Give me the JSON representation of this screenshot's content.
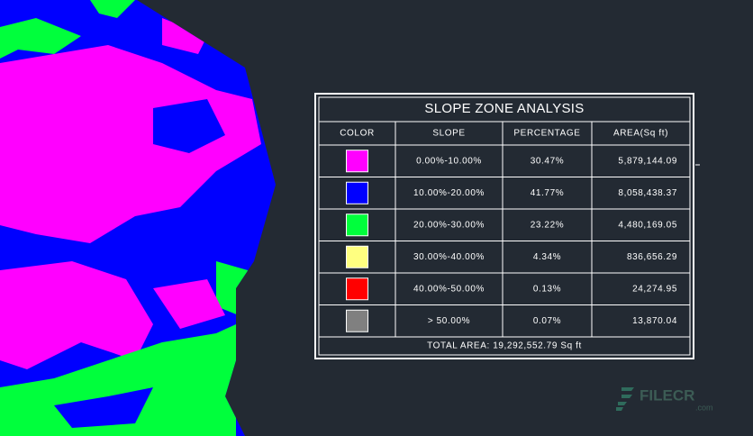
{
  "table": {
    "title": "SLOPE ZONE ANALYSIS",
    "headers": [
      "COLOR",
      "SLOPE",
      "PERCENTAGE",
      "AREA(Sq ft)"
    ],
    "rows": [
      {
        "color": "#ff00ff",
        "slope": "0.00%-10.00%",
        "percentage": "30.47%",
        "area": "5,879,144.09"
      },
      {
        "color": "#0000ff",
        "slope": "10.00%-20.00%",
        "percentage": "41.77%",
        "area": "8,058,438.37"
      },
      {
        "color": "#00ff3c",
        "slope": "20.00%-30.00%",
        "percentage": "23.22%",
        "area": "4,480,169.05"
      },
      {
        "color": "#ffff80",
        "slope": "30.00%-40.00%",
        "percentage": "4.34%",
        "area": "836,656.29"
      },
      {
        "color": "#ff0000",
        "slope": "40.00%-50.00%",
        "percentage": "0.13%",
        "area": "24,274.95"
      },
      {
        "color": "#808080",
        "slope": "> 50.00%",
        "percentage": "0.07%",
        "area": "13,870.04"
      }
    ],
    "total": "TOTAL AREA: 19,292,552.79 Sq ft"
  },
  "watermark": {
    "brand": "FILECR",
    "suffix": ".com"
  }
}
